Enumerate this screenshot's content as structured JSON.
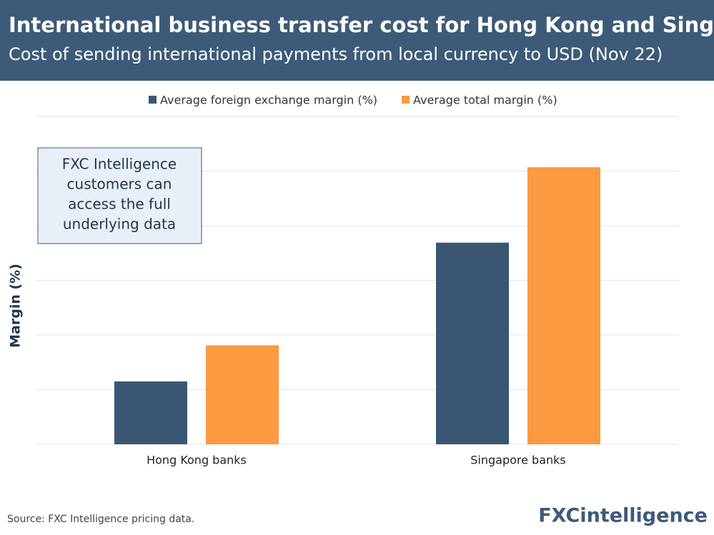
{
  "chart_data": {
    "type": "bar",
    "title": "International business transfer cost for Hong Kong and Singapore",
    "subtitle": "Cost of sending international payments from local currency to USD (Nov 22)",
    "y_label": "Margin (%)",
    "categories": [
      "Hong Kong banks",
      "Singapore banks"
    ],
    "series": [
      {
        "name": "Average foreign exchange margin (%)",
        "color": "#3b5673",
        "values": [
          1.15,
          3.69
        ]
      },
      {
        "name": "Average total margin (%)",
        "color": "#fb9a40",
        "values": [
          1.81,
          5.07
        ]
      }
    ],
    "ylim": [
      0,
      6
    ],
    "yticks": [
      0,
      1,
      2,
      3,
      4,
      5,
      6
    ],
    "grid": true,
    "legend": "top",
    "annotation": [
      "FXC Intelligence",
      "customers can",
      "access the full",
      "underlying data"
    ],
    "source": "Source: FXC Intelligence pricing data.",
    "logo": "FXCintelligence"
  }
}
